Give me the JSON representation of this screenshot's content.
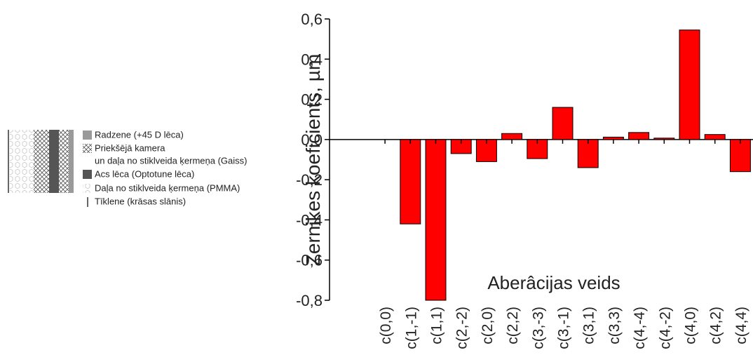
{
  "legend": {
    "items": [
      {
        "lines": [
          "Radzene (+45 D lēca)"
        ]
      },
      {
        "lines": [
          "Priekšējā kamera",
          "un daļa no stiklveida ķermeņa (Gaiss)"
        ]
      },
      {
        "lines": [
          "Acs lēca (Optotune lēca)"
        ]
      },
      {
        "lines": [
          "Daļa no stiklveida ķermeņa (PMMA)"
        ]
      },
      {
        "lines": [
          "Tīklene (krāsas slānis)"
        ]
      }
    ]
  },
  "chart_data": {
    "type": "bar",
    "y_label": "Zernikes koeficients, µm",
    "x_label": "Aberâcijas veids",
    "categories": [
      "c(0,0)",
      "c(1,-1)",
      "c(1,1)",
      "c(2,-2)",
      "c(2,0)",
      "c(2,2)",
      "c(3,-3)",
      "c(3,-1)",
      "c(3,1)",
      "c(3,3)",
      "c(4,-4)",
      "c(4,-2)",
      "c(4,0)",
      "c(4,2)",
      "c(4,4)"
    ],
    "values": [
      0,
      -0.42,
      -0.8,
      -0.07,
      -0.11,
      0.03,
      -0.095,
      0.16,
      -0.14,
      0.012,
      0.035,
      0.007,
      0.545,
      0.025,
      -0.16
    ],
    "color": "#ff0000",
    "ylim": [
      -0.8,
      0.6
    ],
    "yticks": [
      {
        "value": -0.8,
        "label": "-0,8"
      },
      {
        "value": -0.6,
        "label": "-0,6"
      },
      {
        "value": -0.4,
        "label": "-0,4"
      },
      {
        "value": -0.2,
        "label": "-0,2"
      },
      {
        "value": 0,
        "label": "0,0"
      },
      {
        "value": 0.2,
        "label": "0,2"
      },
      {
        "value": 0.4,
        "label": "0,4"
      },
      {
        "value": 0.6,
        "label": "0,6"
      }
    ]
  }
}
